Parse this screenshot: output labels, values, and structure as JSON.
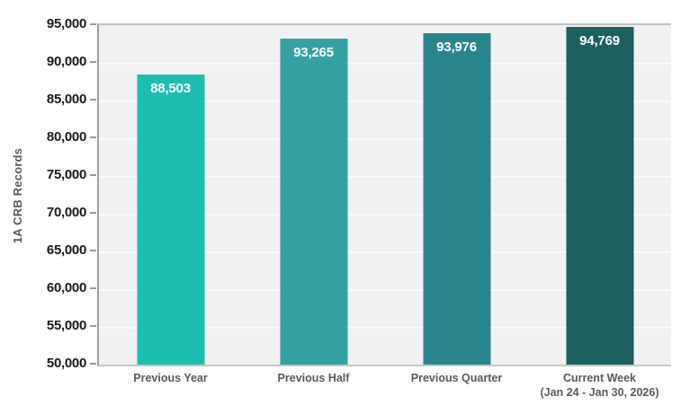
{
  "chart_data": {
    "type": "bar",
    "title": "",
    "xlabel": "",
    "ylabel": "1A CRB Records",
    "categories": [
      "Previous Year",
      "Previous Half",
      "Previous Quarter",
      "Current Week\n(Jan 24 - Jan 30, 2026)"
    ],
    "values": [
      88503,
      93265,
      93976,
      94769
    ],
    "value_labels": [
      "88,503",
      "93,265",
      "93,976",
      "94,769"
    ],
    "bar_colors": [
      "#1ebdb2",
      "#35a1a3",
      "#2a848e",
      "#1d6060"
    ],
    "ylim": [
      50000,
      95000
    ],
    "ytick_step": 5000,
    "ytick_labels": [
      "50,000",
      "55,000",
      "60,000",
      "65,000",
      "70,000",
      "75,000",
      "80,000",
      "85,000",
      "90,000",
      "95,000"
    ],
    "grid": true,
    "legend_position": "none",
    "value_label_color": "#ffffff",
    "axis_label_color": "#595959",
    "tick_label_color": "#1a1a1a",
    "plot_background": "#f0f1f0",
    "gridline_color": "#fafafa"
  }
}
